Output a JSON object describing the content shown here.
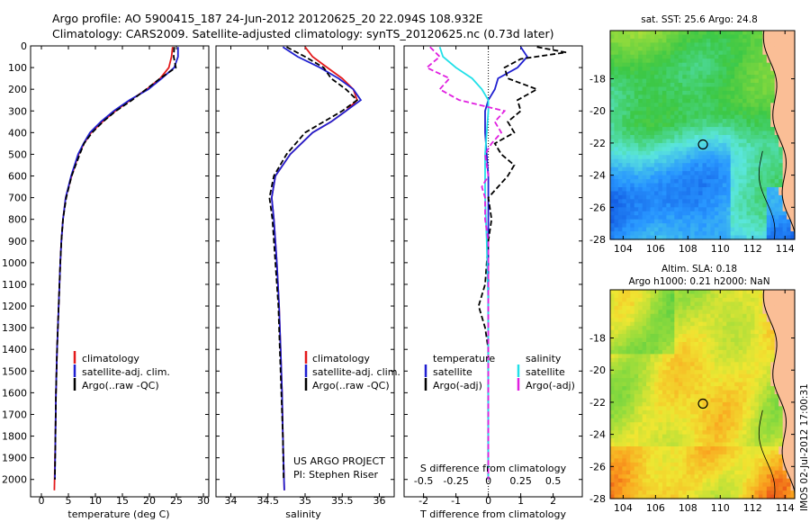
{
  "title": {
    "line1": "Argo profile: AO 5900415_187 24-Jun-2012 20120625_20 22.094S 108.932E",
    "line2": "Climatology: CARS2009. Satellite-adjusted climatology: synTS_20120625.nc (0.73d later)"
  },
  "colors": {
    "climatology": "#e31a1c",
    "satellite": "#1f1fd0",
    "argo": "#000000",
    "s_sat": "#22e0e8",
    "s_argo": "#e020e0",
    "map_marker": "#000000"
  },
  "chart_data": [
    {
      "id": "temperature",
      "type": "line",
      "xlabel": "temperature (deg C)",
      "ylabel": "",
      "xlim": [
        -2,
        31
      ],
      "ylim": [
        2080,
        0
      ],
      "xticks": [
        "0",
        "5",
        "10",
        "15",
        "20",
        "25",
        "30"
      ],
      "xtick_values": [
        0,
        5,
        10,
        15,
        20,
        25,
        30
      ],
      "yticks": [
        "0",
        "100",
        "200",
        "300",
        "400",
        "500",
        "600",
        "700",
        "800",
        "900",
        "1000",
        "1100",
        "1200",
        "1300",
        "1400",
        "1500",
        "1600",
        "1700",
        "1800",
        "1900",
        "2000"
      ],
      "ytick_values": [
        0,
        100,
        200,
        300,
        400,
        500,
        600,
        700,
        800,
        900,
        1000,
        1100,
        1200,
        1300,
        1400,
        1500,
        1600,
        1700,
        1800,
        1900,
        2000
      ],
      "legend": {
        "entries": [
          "climatology",
          "satellite-adj. clim.",
          "Argo(..raw -QC)"
        ],
        "placement": "lower-right"
      },
      "series": [
        {
          "name": "climatology",
          "style": "solid",
          "color_key": "climatology",
          "depth": [
            5,
            50,
            100,
            150,
            200,
            250,
            300,
            350,
            400,
            450,
            500,
            600,
            700,
            800,
            900,
            1000,
            1200,
            1400,
            1600,
            1800,
            2050
          ],
          "values": [
            24.3,
            24.1,
            23.6,
            22.0,
            19.5,
            16.5,
            13.7,
            11.3,
            9.2,
            7.9,
            6.9,
            5.6,
            4.5,
            4.0,
            3.7,
            3.5,
            3.2,
            2.9,
            2.7,
            2.6,
            2.4
          ]
        },
        {
          "name": "satellite-adj. clim.",
          "style": "solid",
          "color_key": "satellite",
          "depth": [
            5,
            50,
            100,
            150,
            200,
            250,
            300,
            350,
            400,
            450,
            500,
            600,
            700,
            800,
            900,
            1000,
            1200,
            1400,
            1600,
            1800,
            2000
          ],
          "values": [
            25.3,
            25.3,
            24.6,
            22.3,
            19.8,
            16.3,
            13.4,
            11.0,
            9.0,
            7.8,
            6.8,
            5.5,
            4.5,
            4.0,
            3.7,
            3.5,
            3.2,
            2.9,
            2.7,
            2.6,
            2.5
          ]
        },
        {
          "name": "Argo(..raw -QC)",
          "style": "dashed",
          "color_key": "argo",
          "depth": [
            5,
            50,
            100,
            150,
            200,
            250,
            300,
            350,
            400,
            450,
            500,
            600,
            700,
            800,
            900,
            1000,
            1200,
            1400,
            1600,
            1800,
            2000
          ],
          "values": [
            24.6,
            24.5,
            24.9,
            22.0,
            19.4,
            16.8,
            13.8,
            11.4,
            9.4,
            7.9,
            7.1,
            5.6,
            4.6,
            4.0,
            3.7,
            3.5,
            3.2,
            2.9,
            2.7,
            2.6,
            2.5
          ]
        }
      ]
    },
    {
      "id": "salinity",
      "type": "line",
      "xlabel": "salinity",
      "xlim": [
        33.8,
        36.2
      ],
      "ylim": [
        2080,
        0
      ],
      "xticks": [
        "34",
        "34.5",
        "35",
        "35.5",
        "36"
      ],
      "xtick_values": [
        34,
        34.5,
        35,
        35.5,
        36
      ],
      "legend": {
        "entries": [
          "climatology",
          "satellite-adj. clim.",
          "Argo(..raw -QC)"
        ],
        "placement": "lower-right"
      },
      "annotation": {
        "line1": "US ARGO PROJECT",
        "line2": "PI: Stephen Riser"
      },
      "series": [
        {
          "name": "climatology",
          "style": "solid",
          "color_key": "climatology",
          "depth": [
            5,
            50,
            100,
            150,
            200,
            250,
            300,
            350,
            400,
            500,
            600,
            700,
            800,
            1000,
            1200,
            1400,
            1600,
            1800,
            2050
          ],
          "values": [
            35.0,
            35.1,
            35.3,
            35.5,
            35.65,
            35.7,
            35.55,
            35.35,
            35.1,
            34.8,
            34.6,
            34.55,
            34.58,
            34.62,
            34.65,
            34.67,
            34.69,
            34.7,
            34.72
          ]
        },
        {
          "name": "satellite-adj. clim.",
          "style": "solid",
          "color_key": "satellite",
          "depth": [
            5,
            50,
            100,
            150,
            200,
            250,
            300,
            350,
            400,
            500,
            600,
            700,
            800,
            1000,
            1200,
            1400,
            1600,
            1800,
            2050
          ],
          "values": [
            34.7,
            34.9,
            35.2,
            35.45,
            35.65,
            35.75,
            35.55,
            35.35,
            35.1,
            34.8,
            34.6,
            34.55,
            34.58,
            34.62,
            34.65,
            34.67,
            34.69,
            34.7,
            34.72
          ]
        },
        {
          "name": "Argo(..raw -QC)",
          "style": "dashed",
          "color_key": "argo",
          "depth": [
            5,
            50,
            100,
            150,
            200,
            250,
            300,
            350,
            400,
            500,
            600,
            700,
            800,
            1000,
            1200,
            1400,
            1600,
            1800,
            2000
          ],
          "values": [
            34.75,
            35.0,
            35.25,
            35.35,
            35.55,
            35.7,
            35.5,
            35.25,
            35.0,
            34.75,
            34.58,
            34.52,
            34.56,
            34.6,
            34.64,
            34.66,
            34.68,
            34.7,
            34.71
          ]
        }
      ]
    },
    {
      "id": "differences",
      "type": "line",
      "xlabel": "T difference from climatology",
      "xlabel_top": "S difference from climatology",
      "xlim": [
        -2.6,
        2.9
      ],
      "ylim": [
        2080,
        0
      ],
      "xticks": [
        "-2",
        "-1",
        "0",
        "1",
        "2"
      ],
      "xtick_values": [
        -2,
        -1,
        0,
        1,
        2
      ],
      "sticks": [
        "-0.5",
        "-0.25",
        "0",
        "0.25",
        "0.5"
      ],
      "stick_values": [
        -2,
        -1,
        0,
        1,
        2
      ],
      "legend": {
        "headers": [
          "temperature",
          "salinity"
        ],
        "entries": [
          "satellite",
          "Argo(-adj)",
          "satellite",
          "Argo(-adj)"
        ]
      },
      "series": [
        {
          "name": "temperature satellite",
          "style": "solid",
          "color_key": "satellite",
          "depth": [
            5,
            50,
            100,
            150,
            200,
            250,
            300,
            400,
            500,
            600,
            700,
            800,
            1000,
            1200,
            1500,
            2000
          ],
          "values": [
            1.0,
            1.2,
            0.9,
            0.3,
            0.2,
            0.0,
            -0.1,
            -0.1,
            -0.05,
            0.0,
            0.0,
            0.0,
            0.0,
            0.0,
            0.0,
            0.0
          ]
        },
        {
          "name": "temperature Argo(-adj)",
          "style": "dashed",
          "color_key": "argo",
          "depth": [
            5,
            30,
            60,
            100,
            150,
            200,
            250,
            300,
            350,
            400,
            450,
            500,
            550,
            600,
            650,
            700,
            800,
            900,
            1000,
            1100,
            1200,
            1300,
            1400,
            1600,
            1800,
            2000
          ],
          "values": [
            1.5,
            2.4,
            1.0,
            0.5,
            0.6,
            1.5,
            0.9,
            1.0,
            0.6,
            0.8,
            0.2,
            0.4,
            0.8,
            0.6,
            0.3,
            0.0,
            0.1,
            0.0,
            -0.05,
            -0.1,
            -0.3,
            -0.1,
            0.0,
            0.0,
            0.0,
            0.0
          ]
        },
        {
          "name": "salinity satellite",
          "style": "solid",
          "color_key": "s_sat",
          "depth": [
            5,
            50,
            100,
            150,
            200,
            250,
            300,
            400,
            500,
            700,
            900,
            1200,
            1500,
            2000
          ],
          "values": [
            -1.5,
            -1.4,
            -1.0,
            -0.5,
            -0.2,
            0.0,
            0.0,
            -0.05,
            -0.1,
            -0.1,
            -0.05,
            0.0,
            0.0,
            0.0
          ]
        },
        {
          "name": "salinity Argo(-adj)",
          "style": "dashed",
          "color_key": "s_argo",
          "depth": [
            5,
            50,
            100,
            150,
            200,
            250,
            300,
            350,
            400,
            450,
            500,
            600,
            650,
            700,
            800,
            900,
            1000,
            1200,
            1500,
            2000
          ],
          "values": [
            -1.8,
            -1.5,
            -1.9,
            -1.2,
            -1.5,
            -0.9,
            0.5,
            0.2,
            0.4,
            0.1,
            -0.1,
            0.0,
            -0.2,
            -0.1,
            -0.1,
            0.0,
            0.0,
            0.0,
            0.0,
            0.0
          ]
        }
      ]
    },
    {
      "id": "sst_map",
      "type": "heatmap",
      "title": "sat. SST: 25.6 Argo: 24.8",
      "xlim": [
        103.2,
        114.6
      ],
      "ylim": [
        -28,
        -15
      ],
      "xticks": [
        "104",
        "106",
        "108",
        "110",
        "112",
        "114"
      ],
      "xtick_values": [
        104,
        106,
        108,
        110,
        112,
        114
      ],
      "yticks": [
        "-18",
        "-20",
        "-22",
        "-24",
        "-26",
        "-28"
      ],
      "ytick_values": [
        -18,
        -20,
        -22,
        -24,
        -26,
        -28
      ],
      "marker": {
        "lon": 108.93,
        "lat": -22.09
      }
    },
    {
      "id": "sla_map",
      "type": "heatmap",
      "title_line1": "Altim. SLA: 0.18",
      "title_line2": "Argo h1000: 0.21 h2000: NaN",
      "xlim": [
        103.2,
        114.6
      ],
      "ylim": [
        -28,
        -15
      ],
      "xticks": [
        "104",
        "106",
        "108",
        "110",
        "112",
        "114"
      ],
      "xtick_values": [
        104,
        106,
        108,
        110,
        112,
        114
      ],
      "yticks": [
        "-18",
        "-20",
        "-22",
        "-24",
        "-26",
        "-28"
      ],
      "ytick_values": [
        -18,
        -20,
        -22,
        -24,
        -26,
        -28
      ],
      "marker": {
        "lon": 108.93,
        "lat": -22.09
      }
    }
  ],
  "watermark": "IMOS 02-Jul-2012 17:00:31"
}
